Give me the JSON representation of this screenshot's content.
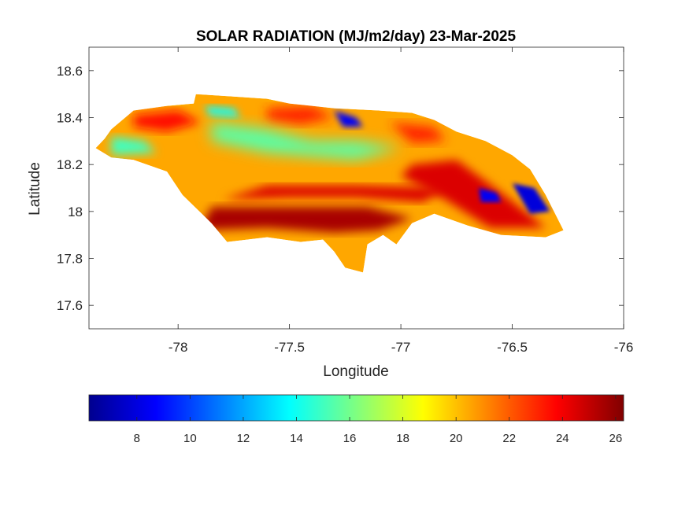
{
  "title": "SOLAR RADIATION (MJ/m2/day) 23-Mar-2025",
  "xlabel": "Longitude",
  "ylabel": "Latitude",
  "xaxis": {
    "min": -78.4,
    "max": -76.0,
    "ticks": [
      -78,
      -77.5,
      -77,
      -76.5,
      -76
    ],
    "tick_labels": [
      "-78",
      "-77.5",
      "-77",
      "-76.5",
      "-76"
    ]
  },
  "yaxis": {
    "min": 17.5,
    "max": 18.7,
    "ticks": [
      17.6,
      17.8,
      18.0,
      18.2,
      18.4,
      18.6
    ],
    "tick_labels": [
      "17.6",
      "17.8",
      "18",
      "18.2",
      "18.4",
      "18.6"
    ]
  },
  "colorbar": {
    "colormap": "jet",
    "min": 6.2,
    "max": 26.3,
    "ticks": [
      8,
      10,
      12,
      14,
      16,
      18,
      20,
      22,
      24,
      26
    ],
    "tick_labels": [
      "8",
      "10",
      "12",
      "14",
      "16",
      "18",
      "20",
      "22",
      "24",
      "26"
    ]
  },
  "map": {
    "region": "Jamaica",
    "outline_lonlat": [
      [
        -78.37,
        18.27
      ],
      [
        -78.33,
        18.31
      ],
      [
        -78.3,
        18.35
      ],
      [
        -78.2,
        18.43
      ],
      [
        -78.05,
        18.45
      ],
      [
        -77.93,
        18.46
      ],
      [
        -77.92,
        18.5
      ],
      [
        -77.75,
        18.49
      ],
      [
        -77.6,
        18.48
      ],
      [
        -77.5,
        18.46
      ],
      [
        -77.3,
        18.44
      ],
      [
        -77.1,
        18.43
      ],
      [
        -76.95,
        18.42
      ],
      [
        -76.85,
        18.39
      ],
      [
        -76.75,
        18.34
      ],
      [
        -76.62,
        18.3
      ],
      [
        -76.5,
        18.24
      ],
      [
        -76.42,
        18.18
      ],
      [
        -76.35,
        18.07
      ],
      [
        -76.27,
        17.92
      ],
      [
        -76.35,
        17.89
      ],
      [
        -76.55,
        17.9
      ],
      [
        -76.7,
        17.94
      ],
      [
        -76.85,
        17.99
      ],
      [
        -76.95,
        17.95
      ],
      [
        -77.02,
        17.86
      ],
      [
        -77.08,
        17.9
      ],
      [
        -77.15,
        17.86
      ],
      [
        -77.17,
        17.74
      ],
      [
        -77.25,
        17.76
      ],
      [
        -77.3,
        17.83
      ],
      [
        -77.35,
        17.88
      ],
      [
        -77.45,
        17.87
      ],
      [
        -77.6,
        17.89
      ],
      [
        -77.78,
        17.87
      ],
      [
        -77.85,
        17.95
      ],
      [
        -77.98,
        18.07
      ],
      [
        -78.05,
        18.17
      ],
      [
        -78.2,
        18.22
      ],
      [
        -78.3,
        18.23
      ]
    ],
    "zones": [
      {
        "zone": "south coast",
        "value": 25.5,
        "lonlat": [
          [
            -77.9,
            17.92
          ],
          [
            -77.6,
            17.93
          ],
          [
            -77.3,
            17.91
          ],
          [
            -77.1,
            17.92
          ],
          [
            -76.95,
            17.97
          ],
          [
            -77.15,
            18.02
          ],
          [
            -77.5,
            18.02
          ],
          [
            -77.85,
            18.02
          ]
        ],
        "blur": 6
      },
      {
        "zone": "south central",
        "value": 24.5,
        "lonlat": [
          [
            -77.8,
            18.05
          ],
          [
            -77.5,
            18.06
          ],
          [
            -77.2,
            18.06
          ],
          [
            -76.9,
            18.04
          ],
          [
            -76.8,
            18.1
          ],
          [
            -77.2,
            18.11
          ],
          [
            -77.6,
            18.11
          ]
        ],
        "blur": 6
      },
      {
        "zone": "east band",
        "value": 24.5,
        "lonlat": [
          [
            -76.95,
            18.2
          ],
          [
            -76.75,
            18.22
          ],
          [
            -76.55,
            18.08
          ],
          [
            -76.35,
            17.93
          ],
          [
            -76.6,
            17.93
          ],
          [
            -76.8,
            18.05
          ],
          [
            -77.0,
            18.15
          ]
        ],
        "blur": 6
      },
      {
        "zone": "west coast",
        "value": 23.5,
        "lonlat": [
          [
            -78.2,
            18.41
          ],
          [
            -78.0,
            18.43
          ],
          [
            -77.9,
            18.38
          ],
          [
            -78.05,
            18.34
          ],
          [
            -78.2,
            18.36
          ]
        ],
        "blur": 6
      },
      {
        "zone": "north central",
        "value": 23.0,
        "lonlat": [
          [
            -77.6,
            18.44
          ],
          [
            -77.4,
            18.45
          ],
          [
            -77.3,
            18.4
          ],
          [
            -77.45,
            18.37
          ],
          [
            -77.6,
            18.39
          ]
        ],
        "blur": 7
      },
      {
        "zone": "northeast",
        "value": 23.0,
        "lonlat": [
          [
            -77.05,
            18.38
          ],
          [
            -76.85,
            18.36
          ],
          [
            -76.8,
            18.3
          ],
          [
            -76.95,
            18.29
          ]
        ],
        "blur": 7
      },
      {
        "zone": "west interior",
        "value": 15.0,
        "lonlat": [
          [
            -78.3,
            18.32
          ],
          [
            -78.15,
            18.3
          ],
          [
            -78.1,
            18.25
          ],
          [
            -78.3,
            18.24
          ]
        ],
        "blur": 6
      },
      {
        "zone": "north interior",
        "value": 15.5,
        "lonlat": [
          [
            -77.85,
            18.38
          ],
          [
            -77.6,
            18.35
          ],
          [
            -77.4,
            18.3
          ],
          [
            -77.2,
            18.3
          ],
          [
            -77.0,
            18.27
          ],
          [
            -77.2,
            18.22
          ],
          [
            -77.6,
            18.25
          ],
          [
            -77.85,
            18.3
          ]
        ],
        "blur": 9
      },
      {
        "zone": "northwest",
        "value": 14.0,
        "lonlat": [
          [
            -77.88,
            18.45
          ],
          [
            -77.75,
            18.44
          ],
          [
            -77.72,
            18.4
          ],
          [
            -77.86,
            18.41
          ]
        ],
        "blur": 5
      },
      {
        "zone": "cockpit",
        "value": 8.5,
        "lonlat": [
          [
            -77.3,
            18.43
          ],
          [
            -77.2,
            18.4
          ],
          [
            -77.17,
            18.36
          ],
          [
            -77.26,
            18.36
          ]
        ],
        "blur": 4
      },
      {
        "zone": "east low 1",
        "value": 8.5,
        "lonlat": [
          [
            -76.65,
            18.1
          ],
          [
            -76.57,
            18.08
          ],
          [
            -76.55,
            18.04
          ],
          [
            -76.64,
            18.04
          ]
        ],
        "blur": 3
      },
      {
        "zone": "east low 2",
        "value": 8.0,
        "lonlat": [
          [
            -76.5,
            18.12
          ],
          [
            -76.4,
            18.1
          ],
          [
            -76.33,
            18.0
          ],
          [
            -76.42,
            17.99
          ]
        ],
        "blur": 3
      }
    ]
  }
}
